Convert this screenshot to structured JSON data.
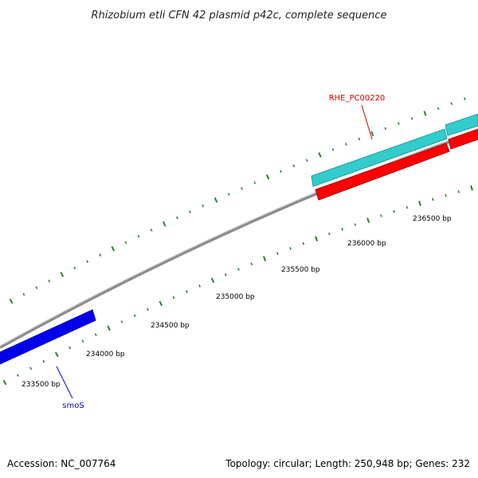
{
  "title": "Rhizobium etli CFN 42 plasmid p42c, complete sequence",
  "footer": {
    "accession": "Accession: NC_007764",
    "summary": "Topology: circular; Length: 250,948 bp; Genes: 232"
  },
  "colors": {
    "backbone": "#8a8a8a",
    "tick": "#2e7d32",
    "cyan_feature": "#33cccc",
    "red_feature": "#ff0000",
    "blue_feature": "#0000ee",
    "label_red": "#cc0000",
    "label_blue": "#0000cc"
  },
  "scale_ticks": [
    {
      "label": "233500 bp"
    },
    {
      "label": "234000 bp"
    },
    {
      "label": "234500 bp"
    },
    {
      "label": "235000 bp"
    },
    {
      "label": "235500 bp"
    },
    {
      "label": "236000 bp"
    },
    {
      "label": "236500 bp"
    }
  ],
  "features": [
    {
      "name": "cyan-feature-1",
      "color": "cyan_feature"
    },
    {
      "name": "cyan-feature-2",
      "color": "cyan_feature"
    },
    {
      "name": "red-feature-1",
      "color": "red_feature"
    },
    {
      "name": "red-feature-2",
      "color": "red_feature"
    },
    {
      "name": "blue-feature-smoS",
      "color": "blue_feature"
    }
  ],
  "gene_labels": [
    {
      "text": "RHE_PC00220",
      "color": "label_red"
    },
    {
      "text": "smoS",
      "color": "label_blue"
    }
  ]
}
